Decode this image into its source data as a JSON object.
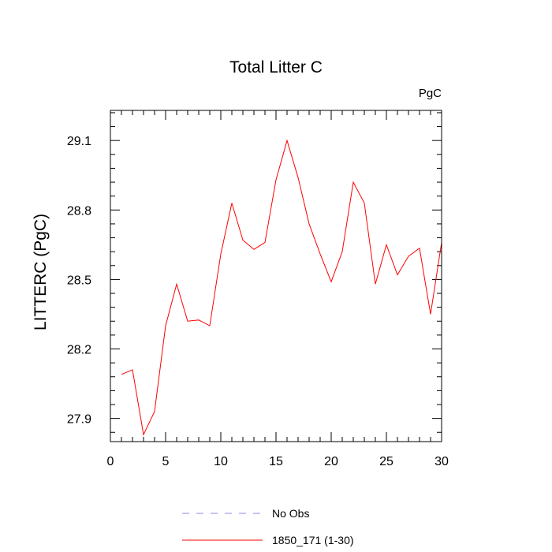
{
  "chart_data": {
    "type": "line",
    "title": "Total Litter C",
    "units_label": "PgC",
    "ylabel": "LITTERC  (PgC)",
    "xlabel": "",
    "xlim": [
      0,
      30
    ],
    "ylim": [
      27.8,
      29.23
    ],
    "x_ticks": [
      0,
      5,
      10,
      15,
      20,
      25,
      30
    ],
    "y_ticks": [
      27.9,
      28.2,
      28.5,
      28.8,
      29.1
    ],
    "x_tick_labels": [
      "0",
      "5",
      "10",
      "15",
      "20",
      "25",
      "30"
    ],
    "y_tick_labels": [
      "27.9",
      "28.2",
      "28.5",
      "28.8",
      "29.1"
    ],
    "x": [
      1,
      2,
      3,
      4,
      5,
      6,
      7,
      8,
      9,
      10,
      11,
      12,
      13,
      14,
      15,
      16,
      17,
      18,
      19,
      20,
      21,
      22,
      23,
      24,
      25,
      26,
      27,
      28,
      29,
      30
    ],
    "series": [
      {
        "name": "1850_171 (1-30)",
        "color": "#ff0000",
        "dash": "solid",
        "values": [
          28.09,
          28.11,
          27.83,
          27.93,
          28.3,
          28.48,
          28.32,
          28.325,
          28.3,
          28.61,
          28.83,
          28.67,
          28.63,
          28.66,
          28.93,
          29.1,
          28.94,
          28.74,
          28.61,
          28.49,
          28.62,
          28.92,
          28.83,
          28.48,
          28.65,
          28.52,
          28.6,
          28.635,
          28.35,
          28.66
        ]
      }
    ],
    "legend": {
      "placement": "bottom",
      "entries": [
        {
          "label": "No Obs",
          "color": "#8888ee",
          "dash": "dashed"
        },
        {
          "label": "1850_171 (1-30)",
          "color": "#ff0000",
          "dash": "solid"
        }
      ]
    },
    "grid": false
  }
}
